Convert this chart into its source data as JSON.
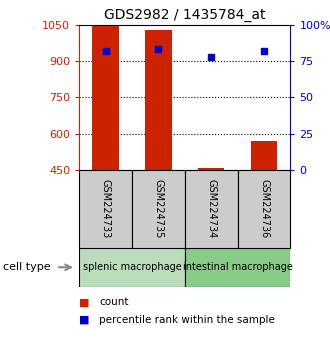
{
  "title": "GDS2982 / 1435784_at",
  "samples": [
    "GSM224733",
    "GSM224735",
    "GSM224734",
    "GSM224736"
  ],
  "counts": [
    1045,
    1030,
    456,
    570
  ],
  "percentiles": [
    82,
    83,
    78,
    82
  ],
  "ylim_left": [
    450,
    1050
  ],
  "ylim_right": [
    0,
    100
  ],
  "yticks_left": [
    450,
    600,
    750,
    900,
    1050
  ],
  "yticks_right": [
    0,
    25,
    50,
    75,
    100
  ],
  "bar_color": "#cc2200",
  "dot_color": "#0000cc",
  "bar_bottom": 450,
  "groups": [
    {
      "label": "splenic macrophage",
      "indices": [
        0,
        1
      ],
      "color": "#bbddbb"
    },
    {
      "label": "intestinal macrophage",
      "indices": [
        2,
        3
      ],
      "color": "#88cc88"
    }
  ],
  "group_label_text": "cell type",
  "legend_items": [
    {
      "label": "count",
      "color": "#cc2200"
    },
    {
      "label": "percentile rank within the sample",
      "color": "#0000cc"
    }
  ],
  "title_fontsize": 10,
  "axis_label_color_left": "#cc2200",
  "axis_label_color_right": "#0000cc",
  "sample_box_color": "#cccccc",
  "bar_width": 0.5
}
